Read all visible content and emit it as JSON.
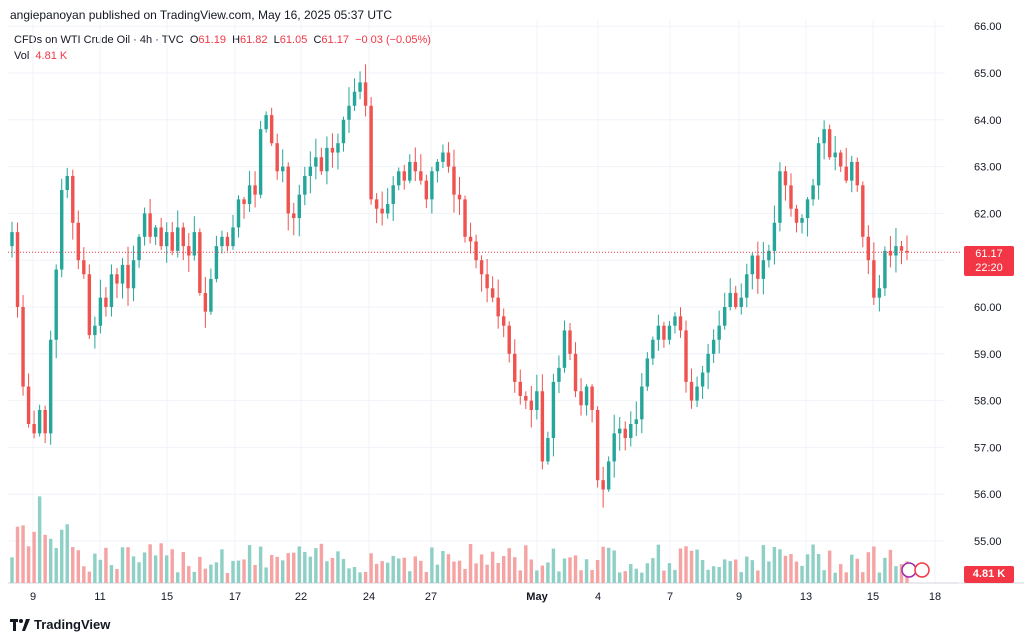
{
  "header": {
    "publisher": "angiepanoyan published on TradingView.com, May 16, 2025 05:37 UTC"
  },
  "legend": {
    "symbol": "CFDs on WTI Crude Oil · 4h · TVC",
    "o_label": "O",
    "o_value": "61.19",
    "h_label": "H",
    "h_value": "61.82",
    "l_label": "L",
    "l_value": "61.05",
    "c_label": "C",
    "c_value": "61.17",
    "change": "−0.03 (−0.05%)",
    "vol_label": "Vol",
    "vol_value": "4.81 K"
  },
  "price_tags": {
    "last": "61.17",
    "countdown": "22:20",
    "volume": "4.81 K"
  },
  "footer": {
    "brand": "TradingView"
  },
  "colors": {
    "up": "#26a69a",
    "down": "#ef5350",
    "up_vol": "#8fd0c6",
    "down_vol": "#f5a3a3",
    "tag": "#f23645"
  },
  "chart_data": {
    "type": "candlestick",
    "title": "CFDs on WTI Crude Oil · 4h · TVC",
    "ylim": [
      54.75,
      66.0
    ],
    "y_ticks": [
      "55.00",
      "56.00",
      "57.00",
      "58.00",
      "59.00",
      "60.00",
      "61.00",
      "62.00",
      "63.00",
      "64.00",
      "65.00",
      "66.00"
    ],
    "x_ticks": [
      "9",
      "11",
      "15",
      "17",
      "22",
      "24",
      "27",
      "May",
      "4",
      "7",
      "9",
      "13",
      "15",
      "18"
    ],
    "last_price": 61.17,
    "closes": [
      61.6,
      60.0,
      58.3,
      57.5,
      57.3,
      57.8,
      57.3,
      59.3,
      60.8,
      62.5,
      62.8,
      61.8,
      61.0,
      60.7,
      59.4,
      59.6,
      60.2,
      60.0,
      60.7,
      60.5,
      60.9,
      60.4,
      61.0,
      61.5,
      62.0,
      61.5,
      61.7,
      61.3,
      61.6,
      61.2,
      61.7,
      61.3,
      61.1,
      61.6,
      60.3,
      59.9,
      60.6,
      61.3,
      61.5,
      61.3,
      61.7,
      62.3,
      62.2,
      62.6,
      62.4,
      63.8,
      64.1,
      63.5,
      62.9,
      63.0,
      62.0,
      61.9,
      62.4,
      62.8,
      63.0,
      63.2,
      62.9,
      63.4,
      63.3,
      63.5,
      64.0,
      64.3,
      64.6,
      64.8,
      64.3,
      62.3,
      62.1,
      62.0,
      62.2,
      62.6,
      62.9,
      62.7,
      63.1,
      62.9,
      62.7,
      62.3,
      62.9,
      63.1,
      63.3,
      63.0,
      62.4,
      62.3,
      61.5,
      61.4,
      61.0,
      60.7,
      60.4,
      60.2,
      59.8,
      59.6,
      59.0,
      58.4,
      58.1,
      58.0,
      57.8,
      58.2,
      56.7,
      57.2,
      58.4,
      58.7,
      59.5,
      59.0,
      58.2,
      57.9,
      58.3,
      57.8,
      56.3,
      56.1,
      56.7,
      57.3,
      57.4,
      57.2,
      57.5,
      57.6,
      58.3,
      58.9,
      59.3,
      59.6,
      59.3,
      59.6,
      59.8,
      59.5,
      58.4,
      58.0,
      58.3,
      58.6,
      59.0,
      59.3,
      59.6,
      60.0,
      60.3,
      60.0,
      60.2,
      60.7,
      61.1,
      60.6,
      61.0,
      61.2,
      61.8,
      62.9,
      62.6,
      62.1,
      61.8,
      61.9,
      62.3,
      62.6,
      63.5,
      63.8,
      63.2,
      63.3,
      63.0,
      62.7,
      63.1,
      62.6,
      61.5,
      61.0,
      60.2,
      60.4,
      61.2,
      61.1,
      61.3,
      61.2,
      61.17
    ],
    "volume_label": "Vol 4.81 K"
  }
}
